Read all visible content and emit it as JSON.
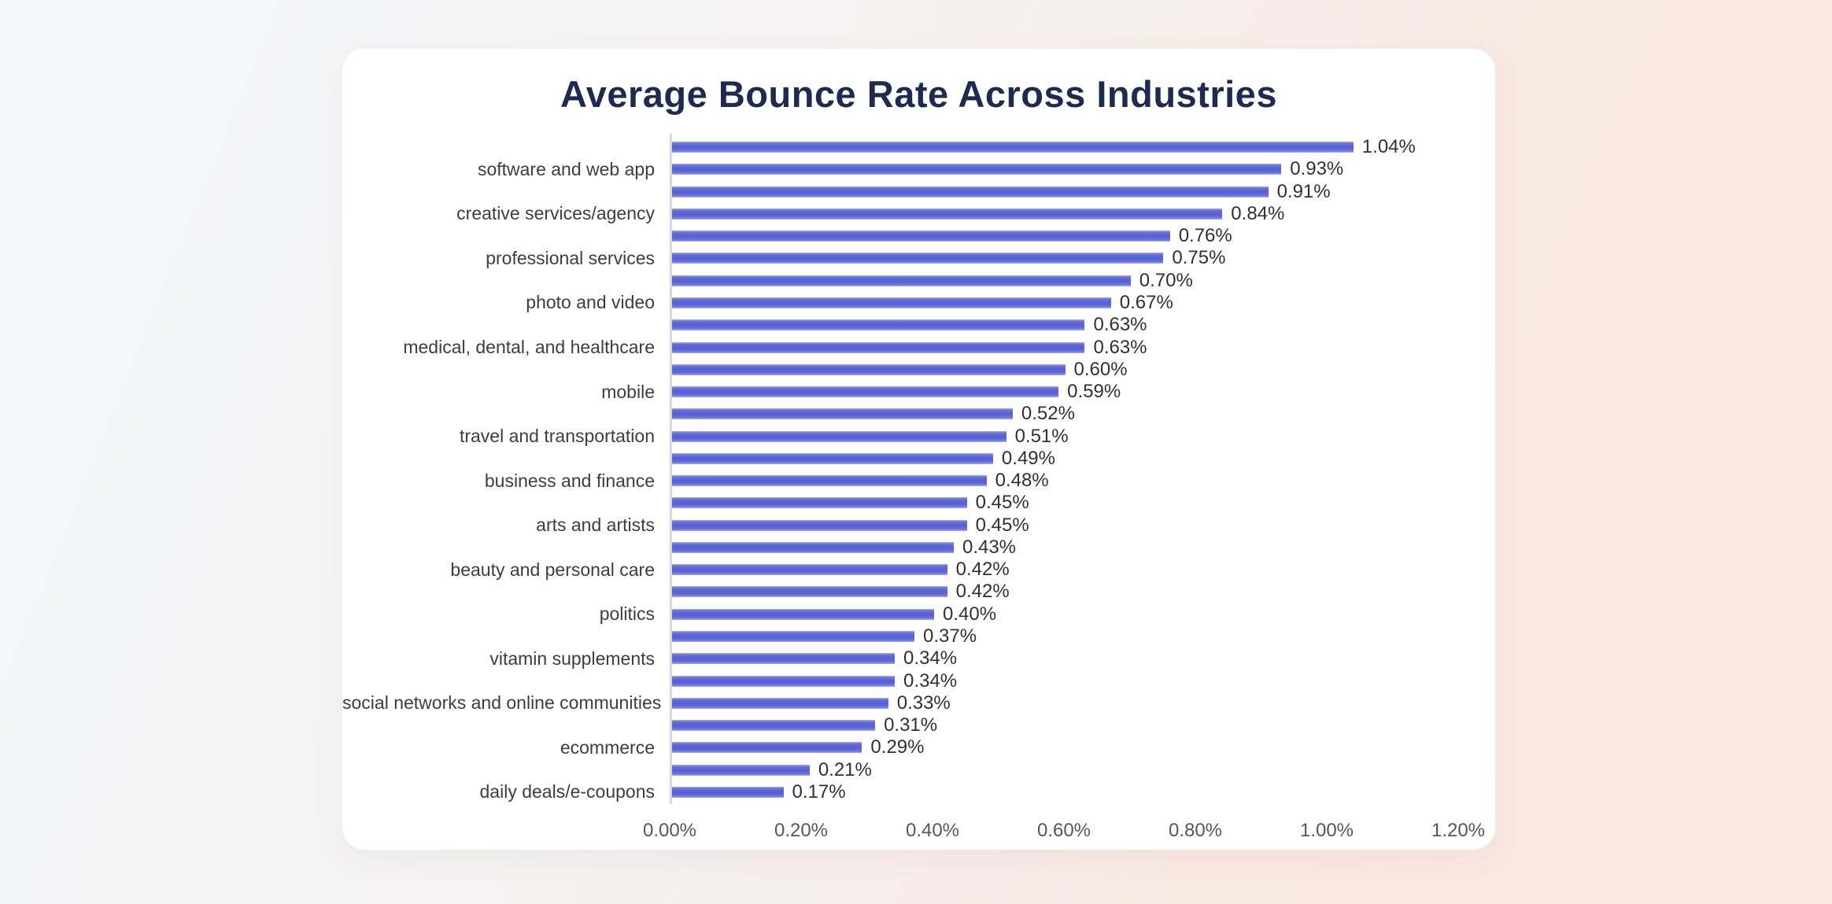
{
  "page": {
    "background_gradient_start": "#f5f7f9",
    "background_gradient_end": "#fbe8e2",
    "card_color": "#ffffff"
  },
  "chart_data": {
    "type": "bar",
    "orientation": "horizontal",
    "title": "Average Bounce Rate Across Industries",
    "title_color": "#1e2b50",
    "bar_color": "#5f68d8",
    "axis_line_color": "#d9d9d9",
    "grid": false,
    "legend": "none",
    "xlim": [
      0,
      1.2
    ],
    "x_ticks": [
      "0.00%",
      "0.20%",
      "0.40%",
      "0.60%",
      "0.80%",
      "1.00%",
      "1.20%"
    ],
    "categories": [
      "",
      "software and web app",
      "",
      "creative services/agency",
      "",
      "professional services",
      "",
      "photo and video",
      "",
      "medical, dental, and healthcare",
      "",
      "mobile",
      "",
      "travel and transportation",
      "",
      "business and finance",
      "",
      "arts and artists",
      "",
      "beauty and personal care",
      "",
      "politics",
      "",
      "vitamin supplements",
      "",
      "social networks and online communities",
      "",
      "ecommerce",
      "",
      "daily deals/e-coupons"
    ],
    "values": [
      1.04,
      0.93,
      0.91,
      0.84,
      0.76,
      0.75,
      0.7,
      0.67,
      0.63,
      0.63,
      0.6,
      0.59,
      0.52,
      0.51,
      0.49,
      0.48,
      0.45,
      0.45,
      0.43,
      0.42,
      0.42,
      0.4,
      0.37,
      0.34,
      0.34,
      0.33,
      0.31,
      0.29,
      0.21,
      0.17
    ],
    "value_labels": [
      "1.04%",
      "0.93%",
      "0.91%",
      "0.84%",
      "0.76%",
      "0.75%",
      "0.70%",
      "0.67%",
      "0.63%",
      "0.63%",
      "0.60%",
      "0.59%",
      "0.52%",
      "0.51%",
      "0.49%",
      "0.48%",
      "0.45%",
      "0.45%",
      "0.43%",
      "0.42%",
      "0.42%",
      "0.40%",
      "0.37%",
      "0.34%",
      "0.34%",
      "0.33%",
      "0.31%",
      "0.29%",
      "0.21%",
      "0.17%"
    ]
  }
}
